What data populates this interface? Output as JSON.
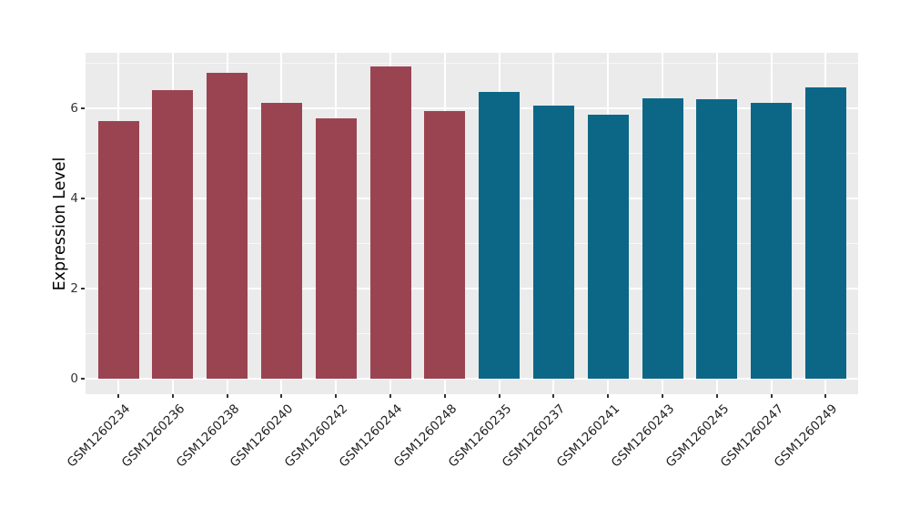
{
  "chart": {
    "y_axis_title": "Expression Level",
    "colors": {
      "panel_background": "#EBEBEB",
      "gridline": "#FFFFFF",
      "tick_text": "#333333",
      "group_a_bar": "#9A4452",
      "group_b_bar": "#0C6787"
    }
  },
  "chart_data": {
    "type": "bar",
    "title": "",
    "xlabel": "",
    "ylabel": "Expression Level",
    "categories": [
      "GSM1260234",
      "GSM1260236",
      "GSM1260238",
      "GSM1260240",
      "GSM1260242",
      "GSM1260244",
      "GSM1260248",
      "GSM1260235",
      "GSM1260237",
      "GSM1260241",
      "GSM1260243",
      "GSM1260245",
      "GSM1260247",
      "GSM1260249"
    ],
    "values": [
      5.72,
      6.41,
      6.79,
      6.12,
      5.78,
      6.93,
      5.95,
      6.37,
      6.07,
      5.86,
      6.22,
      6.2,
      6.12,
      6.47
    ],
    "groups": [
      {
        "name": "group-a",
        "color": "#9A4452",
        "indices": [
          0,
          1,
          2,
          3,
          4,
          5,
          6
        ]
      },
      {
        "name": "group-b",
        "color": "#0C6787",
        "indices": [
          7,
          8,
          9,
          10,
          11,
          12,
          13
        ]
      }
    ],
    "ylim": [
      -0.35,
      7.3
    ],
    "yticks": [
      0,
      2,
      4,
      6
    ],
    "yticks_minor": [
      1,
      3,
      5,
      7
    ],
    "grid": true,
    "legend_position": "none",
    "x_label_rotation_deg": 45
  }
}
